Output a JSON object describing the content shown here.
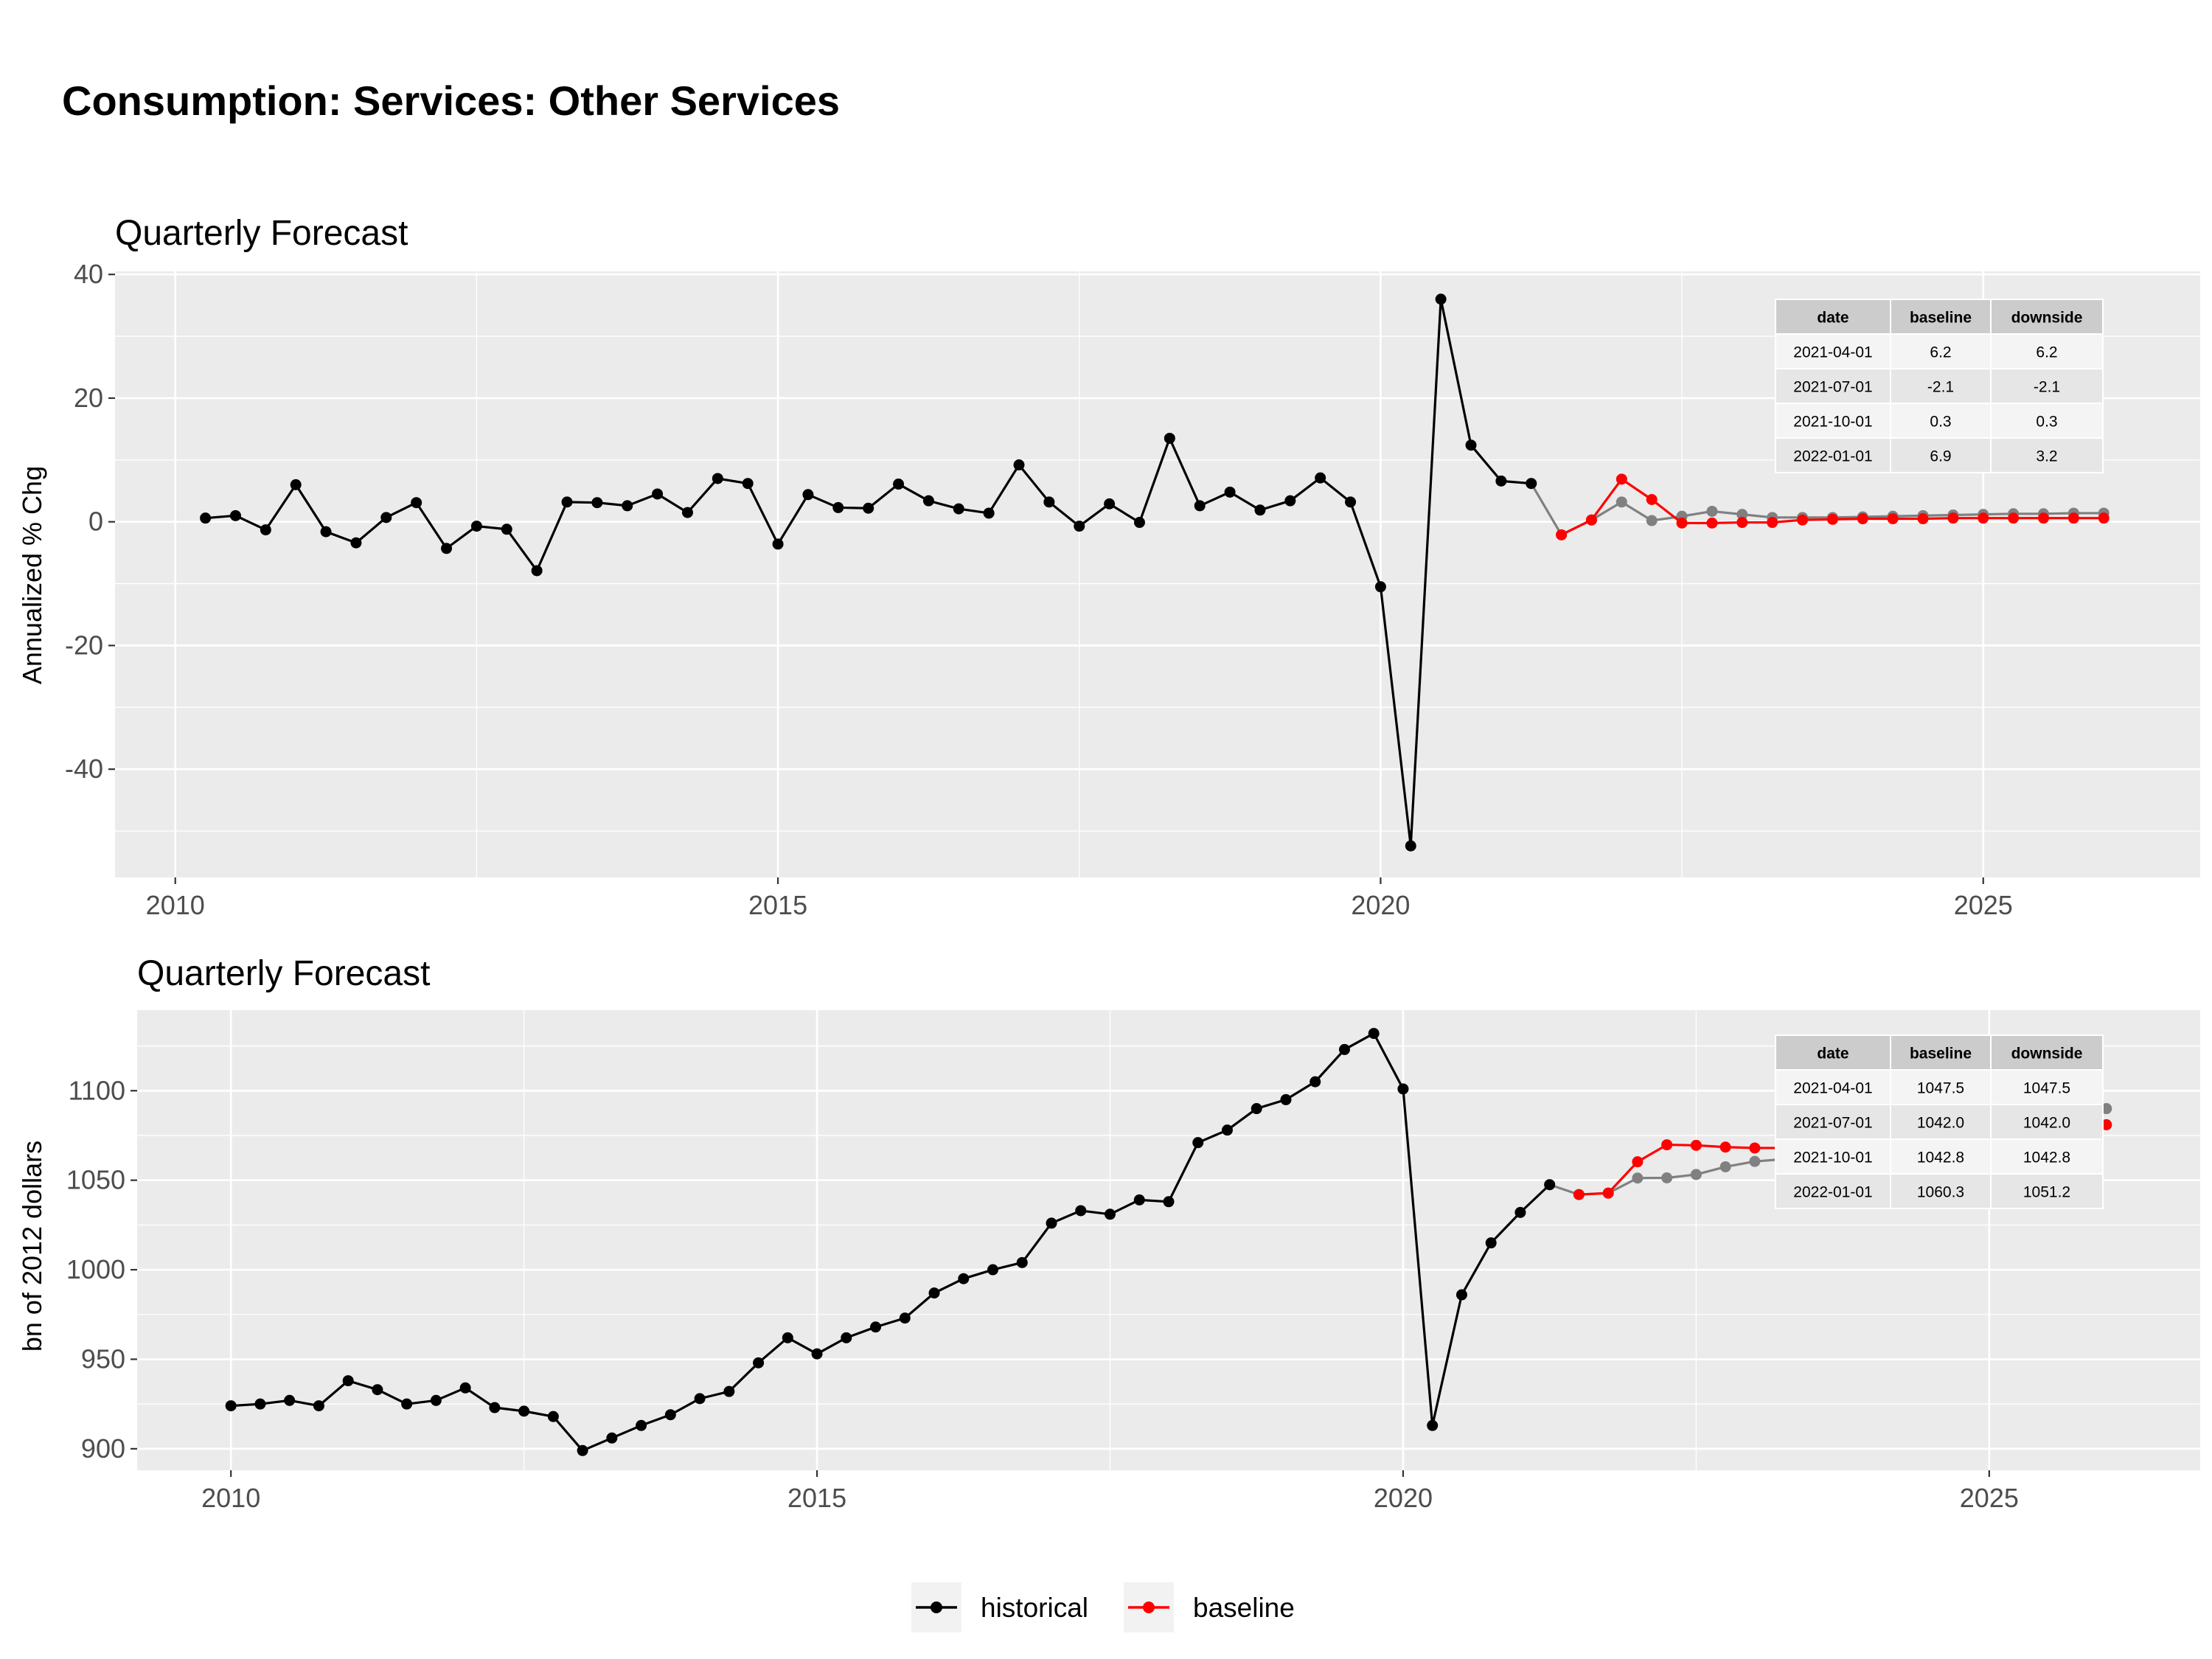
{
  "title": "Consumption: Services: Other Services",
  "legend": [
    {
      "label": "historical",
      "color": "#000000"
    },
    {
      "label": "baseline",
      "color": "#ff0000"
    }
  ],
  "colors": {
    "historical": "#000000",
    "baseline": "#ff0000",
    "downside": "#808080",
    "panel_bg": "#ebebeb",
    "grid": "#ffffff",
    "table_header": "#cccccc",
    "table_row": "#ebebeb"
  },
  "chart_data": [
    {
      "type": "line",
      "title": "Quarterly Forecast",
      "ylabel": "Annualized % Chg",
      "xlabel": "",
      "xlim": [
        2009.5,
        2026.8
      ],
      "ylim": [
        -57.5,
        40.5
      ],
      "x_ticks": [
        2010,
        2015,
        2020,
        2025
      ],
      "y_ticks": [
        -40,
        -20,
        0,
        20,
        40
      ],
      "grid": true,
      "series": [
        {
          "name": "historical",
          "color": "#000000",
          "x": [
            2010.25,
            2010.5,
            2010.75,
            2011.0,
            2011.25,
            2011.5,
            2011.75,
            2012.0,
            2012.25,
            2012.5,
            2012.75,
            2013.0,
            2013.25,
            2013.5,
            2013.75,
            2014.0,
            2014.25,
            2014.5,
            2014.75,
            2015.0,
            2015.25,
            2015.5,
            2015.75,
            2016.0,
            2016.25,
            2016.5,
            2016.75,
            2017.0,
            2017.25,
            2017.5,
            2017.75,
            2018.0,
            2018.25,
            2018.5,
            2018.75,
            2019.0,
            2019.25,
            2019.5,
            2019.75,
            2020.0,
            2020.25,
            2020.5,
            2020.75,
            2021.0,
            2021.25
          ],
          "y": [
            0.6,
            1.0,
            -1.3,
            6.0,
            -1.6,
            -3.4,
            0.7,
            3.1,
            -4.3,
            -0.7,
            -1.2,
            -7.9,
            3.2,
            3.1,
            2.6,
            4.5,
            1.5,
            7.0,
            6.2,
            -3.6,
            4.4,
            2.3,
            2.2,
            6.1,
            3.4,
            2.1,
            1.4,
            9.2,
            3.2,
            -0.7,
            2.9,
            -0.1,
            13.5,
            2.6,
            4.8,
            1.9,
            3.4,
            7.1,
            3.2,
            -10.5,
            -52.4,
            36.0,
            12.4,
            6.6,
            6.2
          ]
        },
        {
          "name": "downside",
          "color": "#808080",
          "x": [
            2021.25,
            2021.5,
            2021.75,
            2022.0,
            2022.25,
            2022.5,
            2022.75,
            2023.0,
            2023.25,
            2023.5,
            2023.75,
            2024.0,
            2024.25,
            2024.5,
            2024.75,
            2025.0,
            2025.25,
            2025.5,
            2025.75,
            2026.0
          ],
          "y": [
            6.2,
            -2.1,
            0.3,
            3.2,
            0.2,
            0.9,
            1.7,
            1.2,
            0.7,
            0.7,
            0.7,
            0.8,
            0.9,
            1.0,
            1.1,
            1.2,
            1.3,
            1.3,
            1.4,
            1.4
          ]
        },
        {
          "name": "baseline",
          "color": "#ff0000",
          "x": [
            2021.5,
            2021.75,
            2022.0,
            2022.25,
            2022.5,
            2022.75,
            2023.0,
            2023.25,
            2023.5,
            2023.75,
            2024.0,
            2024.25,
            2024.5,
            2024.75,
            2025.0,
            2025.25,
            2025.5,
            2025.75,
            2026.0
          ],
          "y": [
            -2.1,
            0.3,
            6.9,
            3.6,
            -0.2,
            -0.2,
            -0.1,
            -0.1,
            0.3,
            0.4,
            0.5,
            0.5,
            0.5,
            0.6,
            0.6,
            0.6,
            0.6,
            0.6,
            0.6
          ]
        }
      ],
      "table": {
        "columns": [
          "date",
          "baseline",
          "downside"
        ],
        "rows": [
          [
            "2021-04-01",
            "6.2",
            "6.2"
          ],
          [
            "2021-07-01",
            "-2.1",
            "-2.1"
          ],
          [
            "2021-10-01",
            "0.3",
            "0.3"
          ],
          [
            "2022-01-01",
            "6.9",
            "3.2"
          ]
        ]
      }
    },
    {
      "type": "line",
      "title": "Quarterly Forecast",
      "ylabel": "bn of 2012 dollars",
      "xlabel": "",
      "xlim": [
        2009.2,
        2026.8
      ],
      "ylim": [
        888,
        1145
      ],
      "x_ticks": [
        2010,
        2015,
        2020,
        2025
      ],
      "y_ticks": [
        900,
        950,
        1000,
        1050,
        1100
      ],
      "grid": true,
      "series": [
        {
          "name": "historical",
          "color": "#000000",
          "x": [
            2010.0,
            2010.25,
            2010.5,
            2010.75,
            2011.0,
            2011.25,
            2011.5,
            2011.75,
            2012.0,
            2012.25,
            2012.5,
            2012.75,
            2013.0,
            2013.25,
            2013.5,
            2013.75,
            2014.0,
            2014.25,
            2014.5,
            2014.75,
            2015.0,
            2015.25,
            2015.5,
            2015.75,
            2016.0,
            2016.25,
            2016.5,
            2016.75,
            2017.0,
            2017.25,
            2017.5,
            2017.75,
            2018.0,
            2018.25,
            2018.5,
            2018.75,
            2019.0,
            2019.25,
            2019.5,
            2019.75,
            2020.0,
            2020.25,
            2020.5,
            2020.75,
            2021.0,
            2021.25
          ],
          "y": [
            924,
            925,
            927,
            924,
            938,
            933,
            925,
            927,
            934,
            923,
            921,
            918,
            899,
            906,
            913,
            919,
            928,
            932,
            948,
            962,
            953,
            962,
            968,
            973,
            987,
            995,
            1000,
            1004,
            1026,
            1033,
            1031,
            1039,
            1038,
            1071,
            1078,
            1090,
            1095,
            1105,
            1123,
            1132,
            1101,
            913,
            986,
            1015,
            1032,
            1047.5
          ]
        },
        {
          "name": "downside",
          "color": "#808080",
          "x": [
            2021.25,
            2021.5,
            2021.75,
            2022.0,
            2022.25,
            2022.5,
            2022.75,
            2023.0,
            2023.25,
            2023.5,
            2023.75,
            2024.0,
            2024.25,
            2024.5,
            2024.75,
            2025.0,
            2025.25,
            2025.5,
            2025.75,
            2026.0
          ],
          "y": [
            1047.5,
            1042.0,
            1042.8,
            1051.2,
            1051.3,
            1053.2,
            1057.5,
            1060.5,
            1061.8,
            1063.0,
            1064.5,
            1066.5,
            1069.0,
            1071.5,
            1074.0,
            1076.5,
            1079.5,
            1082.5,
            1086.0,
            1090.0
          ]
        },
        {
          "name": "baseline",
          "color": "#ff0000",
          "x": [
            2021.5,
            2021.75,
            2022.0,
            2022.25,
            2022.5,
            2022.75,
            2023.0,
            2023.25,
            2023.5,
            2023.75,
            2024.0,
            2024.25,
            2024.5,
            2024.75,
            2025.0,
            2025.25,
            2025.5,
            2025.75,
            2026.0
          ],
          "y": [
            1042.0,
            1042.8,
            1060.3,
            1069.8,
            1069.5,
            1068.5,
            1068.0,
            1068.0,
            1068.5,
            1069.0,
            1070.0,
            1071.0,
            1072.0,
            1073.5,
            1075.0,
            1076.5,
            1078.0,
            1079.5,
            1081.0
          ]
        }
      ],
      "table": {
        "columns": [
          "date",
          "baseline",
          "downside"
        ],
        "rows": [
          [
            "2021-04-01",
            "1047.5",
            "1047.5"
          ],
          [
            "2021-07-01",
            "1042.0",
            "1042.0"
          ],
          [
            "2021-10-01",
            "1042.8",
            "1042.8"
          ],
          [
            "2022-01-01",
            "1060.3",
            "1051.2"
          ]
        ]
      }
    }
  ]
}
